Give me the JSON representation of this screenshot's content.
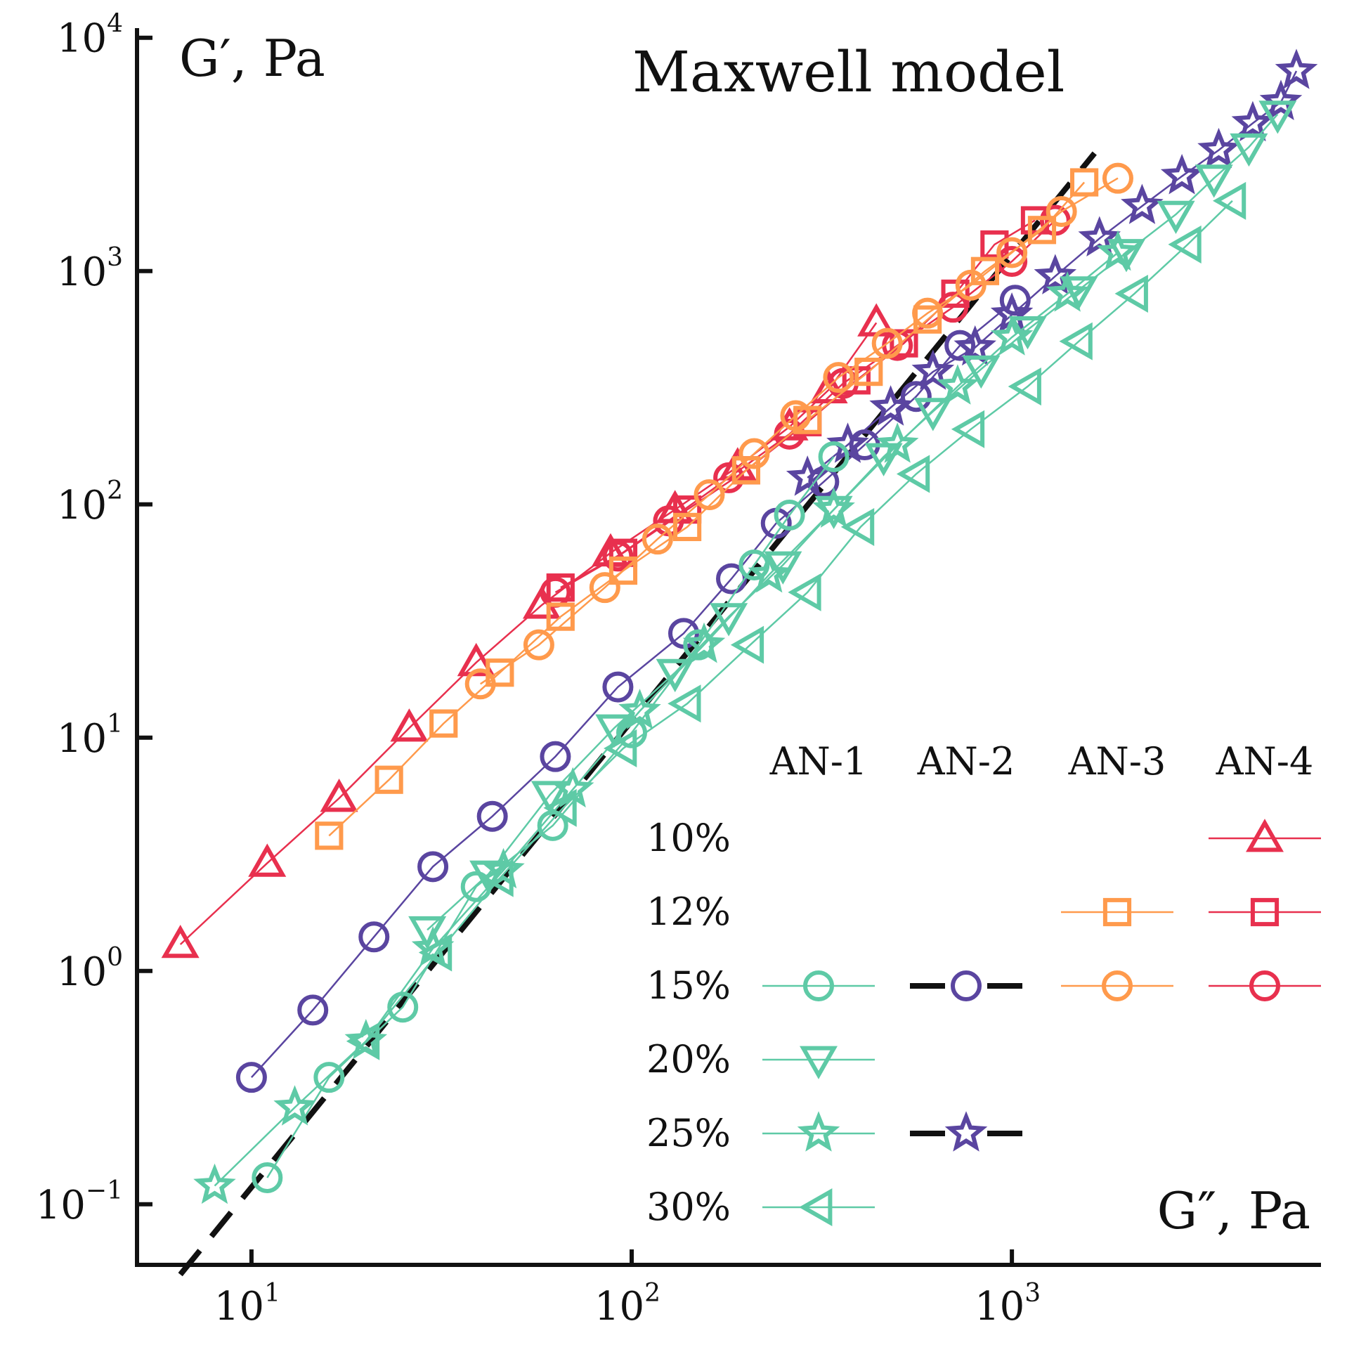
{
  "chart_data": {
    "type": "scatter",
    "xscale": "log",
    "yscale": "log",
    "xlim": [
      5,
      6500
    ],
    "ylim": [
      0.055,
      11000
    ],
    "ylabel": "G′, Pa",
    "xlabel": "G″, Pa",
    "x_ticks": [
      {
        "value": 10,
        "label": "10",
        "exp": "1"
      },
      {
        "value": 100,
        "label": "10",
        "exp": "2"
      },
      {
        "value": 1000,
        "label": "10",
        "exp": "3"
      }
    ],
    "y_ticks": [
      {
        "value": 0.1,
        "label": "10",
        "exp": "−1"
      },
      {
        "value": 1,
        "label": "10",
        "exp": "0"
      },
      {
        "value": 10,
        "label": "10",
        "exp": "1"
      },
      {
        "value": 100,
        "label": "10",
        "exp": "2"
      },
      {
        "value": 1000,
        "label": "10",
        "exp": "3"
      },
      {
        "value": 10000,
        "label": "10",
        "exp": "4"
      }
    ],
    "annotation": "Maxwell model",
    "colors": {
      "AN-1": "#5ecaa6",
      "AN-2": "#5a45a0",
      "AN-3": "#ff9a4c",
      "AN-4": "#e8304e",
      "maxwell": "#111111"
    },
    "maxwell_line": {
      "name": "Maxwell model",
      "x": [
        6.5,
        1650
      ],
      "y": [
        0.05,
        3200
      ]
    },
    "legend": {
      "columns": [
        "AN-1",
        "AN-2",
        "AN-3",
        "AN-4"
      ],
      "rows": [
        "10%",
        "12%",
        "15%",
        "20%",
        "25%",
        "30%"
      ],
      "entries": [
        {
          "row": "10%",
          "col": "AN-4",
          "marker": "triangle-up",
          "color": "#e8304e",
          "dash": false
        },
        {
          "row": "12%",
          "col": "AN-3",
          "marker": "square",
          "color": "#ff9a4c",
          "dash": false
        },
        {
          "row": "12%",
          "col": "AN-4",
          "marker": "square",
          "color": "#e8304e",
          "dash": false
        },
        {
          "row": "15%",
          "col": "AN-1",
          "marker": "circle",
          "color": "#5ecaa6",
          "dash": false
        },
        {
          "row": "15%",
          "col": "AN-2",
          "marker": "circle",
          "color": "#5a45a0",
          "dash": true
        },
        {
          "row": "15%",
          "col": "AN-3",
          "marker": "circle",
          "color": "#ff9a4c",
          "dash": false
        },
        {
          "row": "15%",
          "col": "AN-4",
          "marker": "circle",
          "color": "#e8304e",
          "dash": false
        },
        {
          "row": "20%",
          "col": "AN-1",
          "marker": "triangle-down",
          "color": "#5ecaa6",
          "dash": false
        },
        {
          "row": "25%",
          "col": "AN-1",
          "marker": "star",
          "color": "#5ecaa6",
          "dash": false
        },
        {
          "row": "25%",
          "col": "AN-2",
          "marker": "star",
          "color": "#5a45a0",
          "dash": true
        },
        {
          "row": "30%",
          "col": "AN-1",
          "marker": "triangle-left",
          "color": "#5ecaa6",
          "dash": false
        }
      ]
    },
    "series": [
      {
        "name": "AN-4 10%",
        "marker": "triangle-up",
        "color": "#e8304e",
        "x": [
          6.5,
          11,
          17,
          26,
          39,
          58,
          88,
          130,
          190,
          260,
          330,
          440
        ],
        "y": [
          1.3,
          2.9,
          5.5,
          11,
          21,
          37,
          62,
          95,
          145,
          215,
          310,
          600
        ]
      },
      {
        "name": "AN-4 12%",
        "marker": "square",
        "color": "#e8304e",
        "x": [
          65,
          95,
          140,
          200,
          290,
          390,
          520,
          710,
          900,
          1150
        ],
        "y": [
          44,
          62,
          95,
          140,
          225,
          340,
          490,
          800,
          1300,
          1650
        ]
      },
      {
        "name": "AN-4 15%",
        "marker": "circle",
        "color": "#e8304e",
        "x": [
          63,
          92,
          125,
          180,
          260,
          360,
          500,
          700,
          1000,
          1300
        ],
        "y": [
          42,
          60,
          85,
          130,
          200,
          330,
          480,
          700,
          1100,
          1650
        ]
      },
      {
        "name": "AN-3 12%",
        "marker": "square",
        "color": "#ff9a4c",
        "x": [
          16,
          23,
          32,
          45,
          65,
          95,
          140,
          200,
          290,
          420,
          600,
          850,
          1200,
          1550
        ],
        "y": [
          3.8,
          6.6,
          11.5,
          19,
          33,
          52,
          80,
          140,
          230,
          370,
          620,
          1000,
          1500,
          2400
        ]
      },
      {
        "name": "AN-3 15%",
        "marker": "circle",
        "color": "#ff9a4c",
        "x": [
          40,
          57,
          85,
          117,
          160,
          210,
          270,
          350,
          470,
          600,
          780,
          1000,
          1350,
          1900
        ],
        "y": [
          17,
          25,
          44,
          71,
          110,
          165,
          240,
          350,
          490,
          660,
          870,
          1200,
          1800,
          2500
        ]
      },
      {
        "name": "AN-2 15%",
        "marker": "circle",
        "color": "#5a45a0",
        "x": [
          10,
          14.5,
          21,
          30,
          43,
          63,
          92,
          137,
          183,
          240,
          320,
          410,
          560,
          730,
          1020
        ],
        "y": [
          0.35,
          0.68,
          1.4,
          2.8,
          4.6,
          8.3,
          16.5,
          28,
          48,
          83,
          125,
          180,
          290,
          480,
          750
        ]
      },
      {
        "name": "AN-2 25%",
        "marker": "star",
        "color": "#5a45a0",
        "x": [
          290,
          370,
          480,
          620,
          800,
          1000,
          1300,
          1700,
          2200,
          2800,
          3500,
          4300,
          5100,
          5600
        ],
        "y": [
          130,
          180,
          260,
          370,
          470,
          650,
          950,
          1380,
          1900,
          2550,
          3300,
          4300,
          5300,
          7200
        ]
      },
      {
        "name": "AN-1 15%",
        "marker": "circle",
        "color": "#5ecaa6",
        "x": [
          11,
          16,
          25,
          39,
          62,
          100,
          150,
          210,
          260,
          340
        ],
        "y": [
          0.13,
          0.35,
          0.7,
          2.3,
          4.2,
          10.5,
          25,
          55,
          90,
          160
        ]
      },
      {
        "name": "AN-1 20%",
        "marker": "triangle-down",
        "color": "#5ecaa6",
        "x": [
          29,
          42,
          61,
          90,
          130,
          180,
          250,
          340,
          460,
          620,
          830,
          1100,
          1500,
          2000,
          2700,
          3400,
          4200,
          5000
        ],
        "y": [
          1.5,
          2.6,
          5.7,
          11,
          19,
          33,
          55,
          95,
          160,
          250,
          380,
          560,
          830,
          1200,
          1750,
          2500,
          3400,
          4700
        ]
      },
      {
        "name": "AN-1 25%",
        "marker": "star",
        "color": "#5ecaa6",
        "x": [
          8,
          13,
          20,
          30,
          46,
          70,
          105,
          155,
          230,
          340,
          500,
          720,
          1000,
          1400,
          1900
        ],
        "y": [
          0.12,
          0.26,
          0.5,
          1.25,
          2.7,
          6,
          13,
          25,
          50,
          95,
          180,
          320,
          520,
          800,
          1200
        ]
      },
      {
        "name": "AN-1 30%",
        "marker": "triangle-left",
        "color": "#5ecaa6",
        "x": [
          20,
          31,
          45,
          66,
          95,
          140,
          205,
          290,
          400,
          560,
          780,
          1100,
          1500,
          2100,
          2900,
          3800
        ],
        "y": [
          0.5,
          1.2,
          2.5,
          5,
          9,
          14,
          25,
          42,
          80,
          135,
          210,
          320,
          500,
          800,
          1300,
          2000
        ]
      }
    ]
  }
}
